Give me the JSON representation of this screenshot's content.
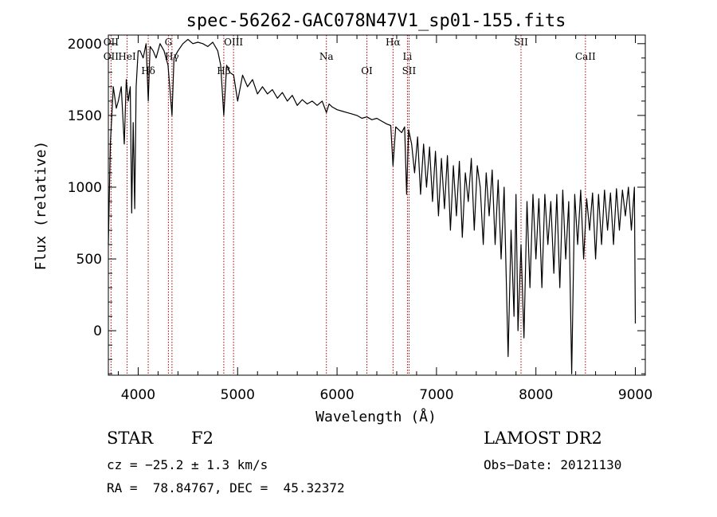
{
  "chart_data": {
    "type": "line",
    "title": "spec-56262-GAC078N47V1_sp01-155.fits",
    "xlabel": "Wavelength (Å)",
    "ylabel": "Flux (relative)",
    "xlim": [
      3700,
      9100
    ],
    "ylim": [
      -310,
      2060
    ],
    "xticks": [
      4000,
      5000,
      6000,
      7000,
      8000,
      9000
    ],
    "yticks": [
      0,
      500,
      1000,
      1500,
      2000
    ],
    "grid": false,
    "series": [
      {
        "x": [
          3700,
          3720,
          3750,
          3780,
          3800,
          3830,
          3860,
          3880,
          3900,
          3920,
          3935,
          3950,
          3965,
          3980,
          4000,
          4020,
          4050,
          4080,
          4101,
          4120,
          4150,
          4180,
          4220,
          4260,
          4300,
          4340,
          4360,
          4400,
          4450,
          4500,
          4550,
          4600,
          4650,
          4700,
          4750,
          4800,
          4830,
          4861,
          4890,
          4920,
          4960,
          5000,
          5050,
          5100,
          5150,
          5200,
          5250,
          5300,
          5350,
          5400,
          5450,
          5500,
          5550,
          5600,
          5650,
          5700,
          5750,
          5800,
          5850,
          5893,
          5920,
          5950,
          6000,
          6050,
          6100,
          6150,
          6200,
          6250,
          6300,
          6350,
          6400,
          6450,
          6500,
          6540,
          6563,
          6590,
          6620,
          6650,
          6680,
          6700,
          6720,
          6750,
          6780,
          6810,
          6840,
          6870,
          6900,
          6930,
          6960,
          6990,
          7020,
          7050,
          7080,
          7110,
          7140,
          7170,
          7200,
          7230,
          7260,
          7290,
          7320,
          7350,
          7380,
          7410,
          7440,
          7470,
          7500,
          7530,
          7560,
          7590,
          7620,
          7650,
          7680,
          7700,
          7720,
          7750,
          7780,
          7800,
          7820,
          7850,
          7880,
          7910,
          7940,
          7970,
          8000,
          8030,
          8060,
          8090,
          8120,
          8150,
          8180,
          8210,
          8240,
          8270,
          8300,
          8330,
          8360,
          8390,
          8420,
          8450,
          8480,
          8510,
          8540,
          8570,
          8600,
          8630,
          8660,
          8690,
          8720,
          8750,
          8780,
          8810,
          8840,
          8870,
          8900,
          8930,
          8960,
          8990,
          9000
        ],
        "y": [
          600,
          1300,
          1700,
          1550,
          1600,
          1700,
          1300,
          1750,
          1600,
          1700,
          820,
          1450,
          850,
          1700,
          1950,
          1950,
          1900,
          2000,
          1600,
          1980,
          1950,
          1900,
          2000,
          1950,
          1850,
          1500,
          1900,
          1950,
          2000,
          2030,
          2000,
          2010,
          2000,
          1980,
          2010,
          1950,
          1850,
          1500,
          1850,
          1800,
          1780,
          1600,
          1780,
          1700,
          1750,
          1650,
          1700,
          1650,
          1680,
          1620,
          1660,
          1600,
          1640,
          1570,
          1610,
          1580,
          1600,
          1570,
          1600,
          1520,
          1580,
          1560,
          1540,
          1530,
          1520,
          1510,
          1500,
          1480,
          1490,
          1470,
          1480,
          1460,
          1440,
          1430,
          1150,
          1420,
          1400,
          1380,
          1420,
          950,
          1400,
          1300,
          1100,
          1350,
          950,
          1300,
          1000,
          1280,
          900,
          1250,
          800,
          1200,
          850,
          1220,
          700,
          1150,
          800,
          1180,
          650,
          1100,
          900,
          1200,
          700,
          1150,
          1000,
          600,
          1100,
          800,
          1120,
          600,
          1050,
          500,
          1000,
          400,
          -180,
          700,
          100,
          950,
          0,
          600,
          -50,
          900,
          300,
          950,
          500,
          920,
          300,
          950,
          600,
          900,
          400,
          950,
          300,
          980,
          500,
          900,
          -300,
          950,
          600,
          980,
          500,
          920,
          700,
          960,
          500,
          950,
          600,
          980,
          700,
          960,
          600,
          990,
          700,
          980,
          800,
          1000,
          700,
          1000,
          50
        ]
      }
    ],
    "lines": [
      {
        "x": 3727,
        "labels": [
          "OII",
          "OII"
        ]
      },
      {
        "x": 3889,
        "labels": [
          "HeI"
        ]
      },
      {
        "x": 4101,
        "labels": [
          "Hδ"
        ]
      },
      {
        "x": 4304,
        "labels": [
          "G"
        ]
      },
      {
        "x": 4340,
        "labels": [
          "Hγ"
        ]
      },
      {
        "x": 4861,
        "labels": [
          "Hβ"
        ]
      },
      {
        "x": 4959,
        "labels": [
          "OIII"
        ]
      },
      {
        "x": 5893,
        "labels": [
          "Na"
        ]
      },
      {
        "x": 6300,
        "labels": [
          "OI"
        ]
      },
      {
        "x": 6563,
        "labels": [
          "Hα"
        ]
      },
      {
        "x": 6708,
        "labels": [
          "Li"
        ]
      },
      {
        "x": 6724,
        "labels": [
          "SII"
        ]
      },
      {
        "x": 7850,
        "labels": [
          "SII"
        ]
      },
      {
        "x": 8498,
        "labels": [
          "CaII"
        ]
      }
    ]
  },
  "info": {
    "object_type": "STAR",
    "subclass": "F2",
    "survey": "LAMOST DR2",
    "cz": "cz = −25.2 ± 1.3 km/s",
    "obs_date": "Obs−Date: 20121130",
    "coords": "RA =  78.84767, DEC =  45.32372"
  },
  "colors": {
    "spectrum": "#000000",
    "line_marker": "#aa0000",
    "axes": "#000000"
  }
}
